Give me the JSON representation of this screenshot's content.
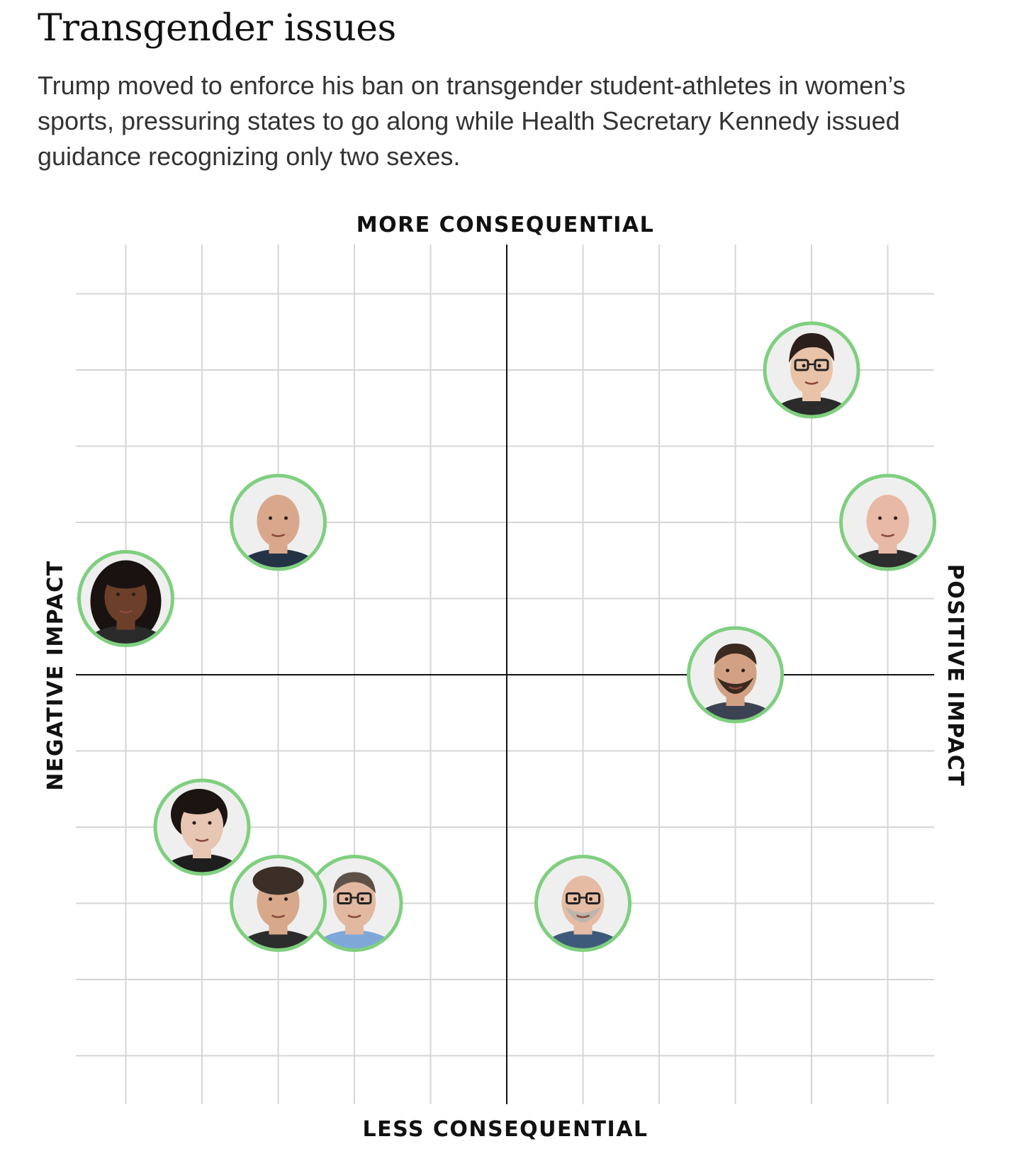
{
  "title": "Transgender issues",
  "description": "Trump moved to enforce his ban on transgender student-athletes in women’s sports, pressuring states to go along while Health Secretary Kennedy issued guidance recognizing only two sexes.",
  "chart_data": {
    "type": "scatter",
    "title": "",
    "axis_labels": {
      "top": "MORE CONSEQUENTIAL",
      "bottom": "LESS CONSEQUENTIAL",
      "left": "NEGATIVE IMPACT",
      "right": "POSITIVE IMPACT"
    },
    "xlim": [
      -5,
      5
    ],
    "ylim": [
      -5,
      5
    ],
    "grid": true,
    "marker_ring_color": "#7fcf7f",
    "gridline_color": "#d6d6d6",
    "axis_color": "#111111",
    "points": [
      {
        "x": 4,
        "y": 4,
        "glyph": "avatar-dark-hair-glasses"
      },
      {
        "x": 5,
        "y": 2,
        "glyph": "avatar-bald-round-face"
      },
      {
        "x": -3,
        "y": 2,
        "glyph": "avatar-bald-smiling-man"
      },
      {
        "x": -5,
        "y": 1,
        "glyph": "avatar-woman-curly-hair"
      },
      {
        "x": 3,
        "y": 0,
        "glyph": "avatar-bearded-man"
      },
      {
        "x": -4,
        "y": -2,
        "glyph": "avatar-woman-short-dark-hair"
      },
      {
        "x": -2,
        "y": -3,
        "glyph": "avatar-man-rimless-glasses"
      },
      {
        "x": -3,
        "y": -3,
        "glyph": "avatar-man-curly-gray-hair"
      },
      {
        "x": 1,
        "y": -3,
        "glyph": "avatar-bald-man-glasses-beard"
      }
    ]
  }
}
